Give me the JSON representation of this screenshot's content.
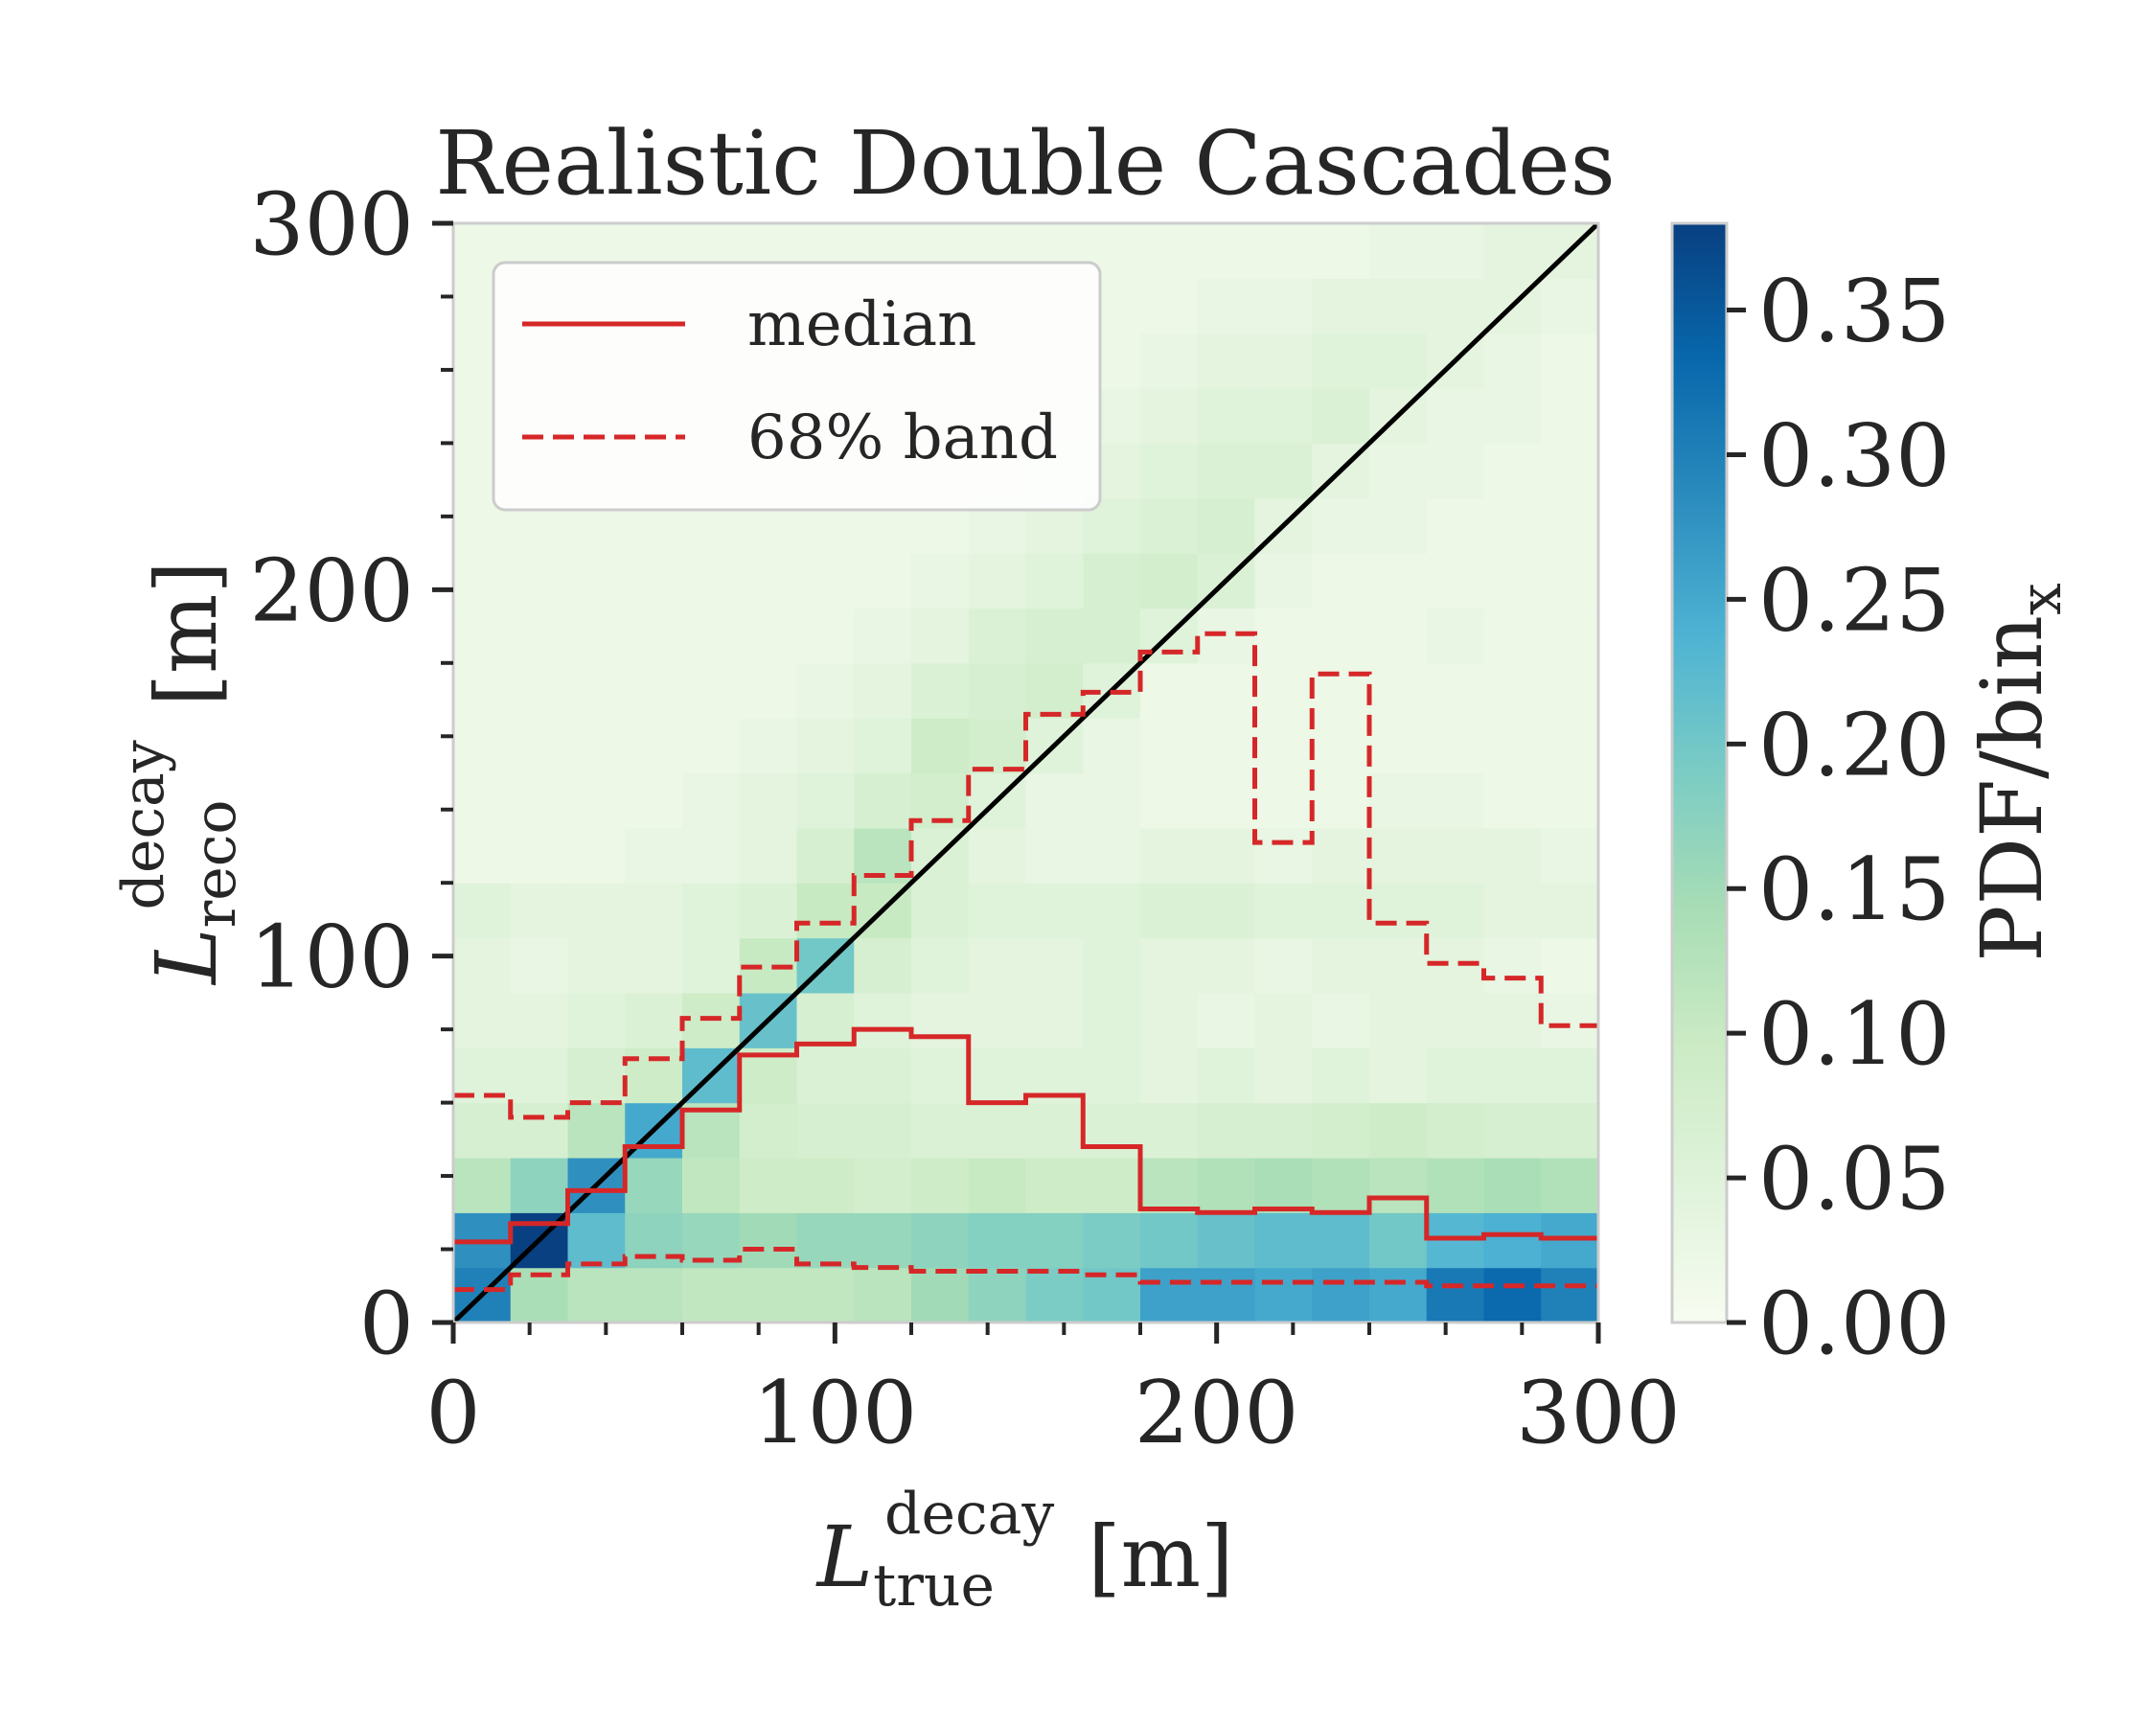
{
  "chart_data": {
    "type": "heatmap",
    "title": "Realistic Double Cascades",
    "xlabel": {
      "symbol": "L",
      "sup": "decay",
      "sub": "true",
      "unit": "[m]"
    },
    "ylabel": {
      "symbol": "L",
      "sup": "decay",
      "sub": "reco",
      "unit": "[m]"
    },
    "xlim": [
      0,
      300
    ],
    "ylim": [
      0,
      300
    ],
    "x_ticks": [
      "0",
      "100",
      "200",
      "300"
    ],
    "y_ticks": [
      "0",
      "100",
      "200",
      "300"
    ],
    "colorbar": {
      "label_main": "PDF/bin",
      "label_sub": "x",
      "range": [
        0,
        0.38
      ],
      "ticks": [
        "0.00",
        "0.05",
        "0.10",
        "0.15",
        "0.20",
        "0.25",
        "0.30",
        "0.35"
      ],
      "tick_values": [
        0,
        0.05,
        0.1,
        0.15,
        0.2,
        0.25,
        0.3,
        0.35
      ],
      "colormap": "GnBu"
    },
    "bin_edges_x": [
      0,
      15,
      30,
      45,
      60,
      75,
      90,
      105,
      120,
      135,
      150,
      165,
      180,
      195,
      210,
      225,
      240,
      255,
      270,
      285,
      300
    ],
    "bin_edges_y": [
      0,
      15,
      30,
      45,
      60,
      75,
      90,
      105,
      120,
      135,
      150,
      165,
      180,
      195,
      210,
      225,
      240,
      255,
      270,
      285,
      300
    ],
    "z": [
      [
        0.3,
        0.14,
        0.12,
        0.12,
        0.11,
        0.11,
        0.11,
        0.12,
        0.15,
        0.17,
        0.19,
        0.2,
        0.26,
        0.26,
        0.25,
        0.26,
        0.25,
        0.31,
        0.33,
        0.3
      ],
      [
        0.28,
        0.38,
        0.22,
        0.17,
        0.16,
        0.15,
        0.16,
        0.16,
        0.17,
        0.18,
        0.18,
        0.19,
        0.2,
        0.21,
        0.22,
        0.22,
        0.2,
        0.23,
        0.24,
        0.25
      ],
      [
        0.12,
        0.17,
        0.28,
        0.16,
        0.11,
        0.09,
        0.09,
        0.08,
        0.09,
        0.1,
        0.09,
        0.09,
        0.12,
        0.13,
        0.14,
        0.13,
        0.12,
        0.13,
        0.14,
        0.13
      ],
      [
        0.07,
        0.07,
        0.12,
        0.25,
        0.12,
        0.08,
        0.07,
        0.07,
        0.06,
        0.06,
        0.06,
        0.06,
        0.06,
        0.07,
        0.07,
        0.08,
        0.09,
        0.08,
        0.07,
        0.07
      ],
      [
        0.05,
        0.05,
        0.07,
        0.09,
        0.22,
        0.09,
        0.06,
        0.06,
        0.05,
        0.05,
        0.05,
        0.05,
        0.04,
        0.05,
        0.04,
        0.05,
        0.04,
        0.05,
        0.05,
        0.05
      ],
      [
        0.04,
        0.04,
        0.05,
        0.06,
        0.09,
        0.21,
        0.07,
        0.05,
        0.04,
        0.04,
        0.04,
        0.05,
        0.04,
        0.03,
        0.04,
        0.03,
        0.04,
        0.04,
        0.04,
        0.03
      ],
      [
        0.04,
        0.03,
        0.04,
        0.04,
        0.05,
        0.1,
        0.2,
        0.07,
        0.05,
        0.04,
        0.04,
        0.05,
        0.04,
        0.04,
        0.03,
        0.04,
        0.04,
        0.04,
        0.03,
        0.02
      ],
      [
        0.05,
        0.04,
        0.04,
        0.04,
        0.05,
        0.06,
        0.1,
        0.1,
        0.06,
        0.05,
        0.05,
        0.05,
        0.06,
        0.06,
        0.05,
        0.05,
        0.05,
        0.05,
        0.04,
        0.04
      ],
      [
        0.02,
        0.02,
        0.02,
        0.03,
        0.03,
        0.04,
        0.07,
        0.12,
        0.06,
        0.04,
        0.03,
        0.03,
        0.04,
        0.04,
        0.03,
        0.04,
        0.04,
        0.04,
        0.04,
        0.03
      ],
      [
        0.02,
        0.02,
        0.02,
        0.02,
        0.03,
        0.04,
        0.05,
        0.07,
        0.08,
        0.05,
        0.03,
        0.03,
        0.02,
        0.02,
        0.02,
        0.02,
        0.03,
        0.03,
        0.02,
        0.02
      ],
      [
        0.02,
        0.02,
        0.02,
        0.02,
        0.02,
        0.03,
        0.04,
        0.05,
        0.09,
        0.08,
        0.05,
        0.03,
        0.02,
        0.02,
        0.02,
        0.02,
        0.02,
        0.02,
        0.02,
        0.02
      ],
      [
        0.02,
        0.02,
        0.02,
        0.02,
        0.02,
        0.02,
        0.03,
        0.04,
        0.06,
        0.07,
        0.08,
        0.05,
        0.02,
        0.02,
        0.02,
        0.02,
        0.02,
        0.02,
        0.02,
        0.02
      ],
      [
        0.02,
        0.02,
        0.02,
        0.02,
        0.02,
        0.02,
        0.02,
        0.03,
        0.04,
        0.06,
        0.07,
        0.07,
        0.05,
        0.03,
        0.02,
        0.02,
        0.02,
        0.03,
        0.02,
        0.02
      ],
      [
        0.02,
        0.02,
        0.02,
        0.02,
        0.02,
        0.02,
        0.02,
        0.02,
        0.03,
        0.04,
        0.05,
        0.07,
        0.08,
        0.06,
        0.03,
        0.02,
        0.02,
        0.02,
        0.02,
        0.02
      ],
      [
        0.02,
        0.02,
        0.02,
        0.02,
        0.02,
        0.02,
        0.02,
        0.02,
        0.02,
        0.03,
        0.04,
        0.05,
        0.06,
        0.07,
        0.04,
        0.03,
        0.03,
        0.02,
        0.02,
        0.02
      ],
      [
        0.02,
        0.02,
        0.02,
        0.02,
        0.02,
        0.02,
        0.02,
        0.02,
        0.02,
        0.02,
        0.03,
        0.04,
        0.05,
        0.06,
        0.06,
        0.04,
        0.03,
        0.03,
        0.02,
        0.02
      ],
      [
        0.02,
        0.02,
        0.02,
        0.02,
        0.02,
        0.02,
        0.02,
        0.02,
        0.02,
        0.02,
        0.02,
        0.03,
        0.04,
        0.05,
        0.05,
        0.06,
        0.04,
        0.03,
        0.03,
        0.02
      ],
      [
        0.02,
        0.02,
        0.02,
        0.02,
        0.02,
        0.02,
        0.02,
        0.02,
        0.02,
        0.02,
        0.02,
        0.02,
        0.03,
        0.04,
        0.04,
        0.05,
        0.05,
        0.04,
        0.03,
        0.02
      ],
      [
        0.02,
        0.02,
        0.02,
        0.02,
        0.02,
        0.02,
        0.02,
        0.02,
        0.02,
        0.02,
        0.02,
        0.02,
        0.02,
        0.03,
        0.03,
        0.04,
        0.04,
        0.04,
        0.04,
        0.03
      ],
      [
        0.02,
        0.02,
        0.02,
        0.02,
        0.02,
        0.02,
        0.02,
        0.02,
        0.02,
        0.02,
        0.02,
        0.02,
        0.02,
        0.02,
        0.02,
        0.02,
        0.03,
        0.03,
        0.04,
        0.04
      ]
    ],
    "series": [
      {
        "name": "median",
        "style": "solid",
        "color": "#d62728",
        "steps": [
          22,
          27,
          36,
          48,
          58,
          73,
          76,
          80,
          78,
          60,
          62,
          48,
          31,
          30,
          31,
          30,
          34,
          23,
          24,
          23
        ]
      },
      {
        "name": "68% band",
        "style": "dashed",
        "color": "#d62728",
        "upper": [
          62,
          56,
          60,
          72,
          83,
          97,
          109,
          122,
          137,
          151,
          166,
          172,
          183,
          188,
          131,
          177,
          109,
          98,
          94,
          81
        ],
        "lower": [
          9,
          13,
          16,
          18,
          17,
          20,
          16,
          15,
          14,
          14,
          14,
          13,
          11,
          11,
          11,
          11,
          11,
          10,
          10,
          10
        ]
      },
      {
        "name": "diagonal",
        "style": "solid",
        "color": "#000000",
        "x": [
          0,
          300
        ],
        "y": [
          0,
          300
        ]
      }
    ],
    "legend": {
      "position": "upper-left",
      "entries": [
        {
          "label": "median",
          "style": "solid"
        },
        {
          "label": "68% band",
          "style": "dashed"
        }
      ]
    }
  }
}
